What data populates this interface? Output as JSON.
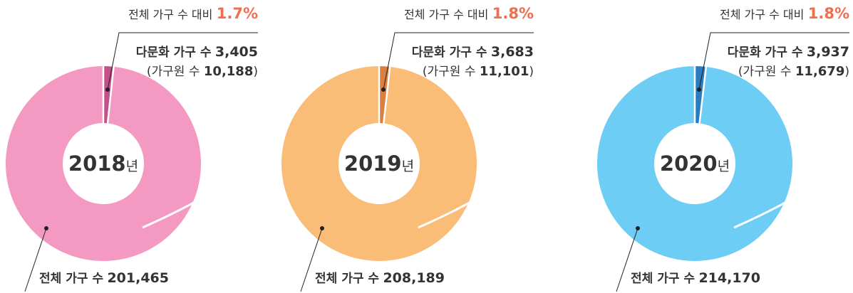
{
  "chart_data": [
    {
      "type": "pie",
      "title": "2018",
      "title_suffix": "년",
      "categories": [
        "다문화 가구 수",
        "전체 가구 수"
      ],
      "values": [
        3405,
        201465
      ],
      "value_labels": [
        "3,405",
        "201,465"
      ],
      "share_prefix": "전체 가구 수 대비",
      "share": 1.7,
      "share_label": "1.7%",
      "members_prefix": "(가구원 수",
      "members": 10188,
      "members_label": "10,188",
      "members_suffix": ")",
      "colors": [
        "#c4508a",
        "#f49ac2"
      ]
    },
    {
      "type": "pie",
      "title": "2019",
      "title_suffix": "년",
      "categories": [
        "다문화 가구 수",
        "전체 가구 수"
      ],
      "values": [
        3683,
        208189
      ],
      "value_labels": [
        "3,683",
        "208,189"
      ],
      "share_prefix": "전체 가구 수 대비",
      "share": 1.8,
      "share_label": "1.8%",
      "members_prefix": "(가구원 수",
      "members": 11101,
      "members_label": "11,101",
      "members_suffix": ")",
      "colors": [
        "#d98040",
        "#fabd78"
      ]
    },
    {
      "type": "pie",
      "title": "2020",
      "title_suffix": "년",
      "categories": [
        "다문화 가구 수",
        "전체 가구 수"
      ],
      "values": [
        3937,
        214170
      ],
      "value_labels": [
        "3,937",
        "214,170"
      ],
      "share_prefix": "전체 가구 수 대비",
      "share": 1.8,
      "share_label": "1.8%",
      "members_prefix": "(가구원 수",
      "members": 11679,
      "members_label": "11,679",
      "members_suffix": ")",
      "colors": [
        "#2a7cc0",
        "#6dcdf5"
      ]
    }
  ]
}
